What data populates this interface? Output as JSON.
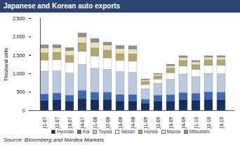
{
  "chart_data": {
    "type": "bar",
    "stacked": true,
    "title": "Japanese and Korean auto exports",
    "caption": "Source: Bloomberg and Nordea Markets",
    "y_label": "Thousand units",
    "categories": [
      "Q1-07",
      "Q2-07",
      "Q3-07",
      "Q4-07",
      "Q1-08",
      "Q2-08",
      "Q3-08",
      "Q4-08",
      "Q1-09",
      "Q2-09",
      "Q3-09",
      "Q4-09",
      "Q1-10",
      "Q2-10",
      "Q3-10"
    ],
    "series": [
      {
        "name": "Hyundai",
        "color": "#14305e",
        "values": [
          270,
          290,
          250,
          320,
          290,
          300,
          260,
          260,
          190,
          260,
          250,
          290,
          280,
          300,
          290
        ]
      },
      {
        "name": "Kia",
        "color": "#3d6bb3",
        "values": [
          170,
          180,
          160,
          220,
          200,
          190,
          170,
          170,
          110,
          150,
          170,
          190,
          180,
          200,
          200
        ]
      },
      {
        "name": "Toyota",
        "color": "#b9c9de",
        "values": [
          620,
          600,
          600,
          700,
          650,
          620,
          620,
          600,
          280,
          320,
          420,
          500,
          450,
          500,
          500
        ]
      },
      {
        "name": "Nissan",
        "color": "#ffffff",
        "values": [
          300,
          300,
          290,
          360,
          330,
          310,
          300,
          300,
          120,
          120,
          180,
          220,
          200,
          220,
          230
        ]
      },
      {
        "name": "Honda",
        "color": "#b3a66a",
        "values": [
          200,
          200,
          190,
          230,
          220,
          210,
          190,
          200,
          80,
          80,
          120,
          150,
          130,
          150,
          150
        ]
      },
      {
        "name": "Mazda",
        "color": "#e9e2bd",
        "values": [
          130,
          130,
          130,
          160,
          150,
          140,
          130,
          130,
          40,
          50,
          70,
          80,
          70,
          70,
          70
        ]
      },
      {
        "name": "Mitsubishi",
        "color": "#8e8e8e",
        "values": [
          90,
          80,
          80,
          110,
          110,
          80,
          90,
          90,
          30,
          20,
          40,
          50,
          40,
          40,
          40
        ]
      }
    ],
    "ylim": [
      0,
      2500
    ],
    "yticks": [
      0,
      500,
      {
        "value": 1000,
        "label": "1,000"
      },
      {
        "value": 1500,
        "label": "1,500"
      },
      {
        "value": 2000,
        "label": "2,000"
      },
      {
        "value": 2500,
        "label": "2,500"
      }
    ],
    "grid": false,
    "legend": "bottom"
  }
}
